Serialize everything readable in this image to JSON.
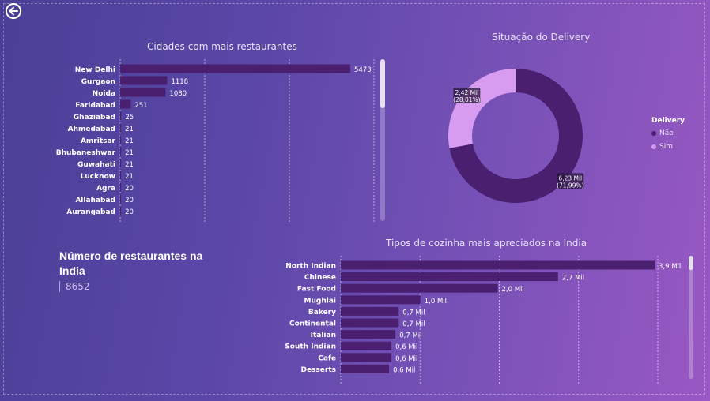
{
  "kpi": {
    "title": "Número de restaurantes na India",
    "value": "8652"
  },
  "cities_chart": {
    "title": "Cidades com mais restaurantes",
    "bar_color": "#4a1f70",
    "max": 5473,
    "items": [
      {
        "city": "New Delhi",
        "value": 5473,
        "label": "5473"
      },
      {
        "city": "Gurgaon",
        "value": 1118,
        "label": "1118"
      },
      {
        "city": "Noida",
        "value": 1080,
        "label": "1080"
      },
      {
        "city": "Faridabad",
        "value": 251,
        "label": "251"
      },
      {
        "city": "Ghaziabad",
        "value": 25,
        "label": "25"
      },
      {
        "city": "Ahmedabad",
        "value": 21,
        "label": "21"
      },
      {
        "city": "Amritsar",
        "value": 21,
        "label": "21"
      },
      {
        "city": "Bhubaneshwar",
        "value": 21,
        "label": "21"
      },
      {
        "city": "Guwahati",
        "value": 21,
        "label": "21"
      },
      {
        "city": "Lucknow",
        "value": 21,
        "label": "21"
      },
      {
        "city": "Agra",
        "value": 20,
        "label": "20"
      },
      {
        "city": "Allahabad",
        "value": 20,
        "label": "20"
      },
      {
        "city": "Aurangabad",
        "value": 20,
        "label": "20"
      }
    ]
  },
  "delivery_chart": {
    "title": "Situação do Delivery",
    "legend_title": "Delivery",
    "slices": [
      {
        "name": "Não",
        "value": 6230,
        "label_1": "6,23 Mil",
        "label_2": "(71,99%)",
        "color": "#4a1f70"
      },
      {
        "name": "Sim",
        "value": 2420,
        "label_1": "2,42 Mil",
        "label_2": "(28,01%)",
        "color": "#d79cf0"
      }
    ]
  },
  "cuisine_chart": {
    "title": "Tipos de cozinha mais apreciados na India",
    "bar_color": "#4a1f70",
    "max": 3.9,
    "items": [
      {
        "cuisine": "North Indian",
        "value": 3.9,
        "label": "3,9 Mil"
      },
      {
        "cuisine": "Chinese",
        "value": 2.7,
        "label": "2,7 Mil"
      },
      {
        "cuisine": "Fast Food",
        "value": 1.95,
        "label": "2,0 Mil"
      },
      {
        "cuisine": "Mughlai",
        "value": 0.99,
        "label": "1,0 Mil"
      },
      {
        "cuisine": "Bakery",
        "value": 0.72,
        "label": "0,7 Mil"
      },
      {
        "cuisine": "Continental",
        "value": 0.72,
        "label": "0,7 Mil"
      },
      {
        "cuisine": "Italian",
        "value": 0.68,
        "label": "0,7 Mil"
      },
      {
        "cuisine": "South Indian",
        "value": 0.63,
        "label": "0,6 Mil"
      },
      {
        "cuisine": "Cafe",
        "value": 0.63,
        "label": "0,6 Mil"
      },
      {
        "cuisine": "Desserts",
        "value": 0.6,
        "label": "0,6 Mil"
      }
    ]
  },
  "chart_data": [
    {
      "type": "bar",
      "title": "Cidades com mais restaurantes",
      "categories": [
        "New Delhi",
        "Gurgaon",
        "Noida",
        "Faridabad",
        "Ghaziabad",
        "Ahmedabad",
        "Amritsar",
        "Bhubaneshwar",
        "Guwahati",
        "Lucknow",
        "Agra",
        "Allahabad",
        "Aurangabad"
      ],
      "values": [
        5473,
        1118,
        1080,
        251,
        25,
        21,
        21,
        21,
        21,
        21,
        20,
        20,
        20
      ]
    },
    {
      "type": "pie",
      "title": "Situação do Delivery",
      "categories": [
        "Não",
        "Sim"
      ],
      "values": [
        6230,
        2420
      ]
    },
    {
      "type": "bar",
      "title": "Tipos de cozinha mais apreciados na India",
      "categories": [
        "North Indian",
        "Chinese",
        "Fast Food",
        "Mughlai",
        "Bakery",
        "Continental",
        "Italian",
        "South Indian",
        "Cafe",
        "Desserts"
      ],
      "values": [
        3900,
        2700,
        1950,
        990,
        720,
        720,
        680,
        630,
        630,
        600
      ]
    }
  ]
}
